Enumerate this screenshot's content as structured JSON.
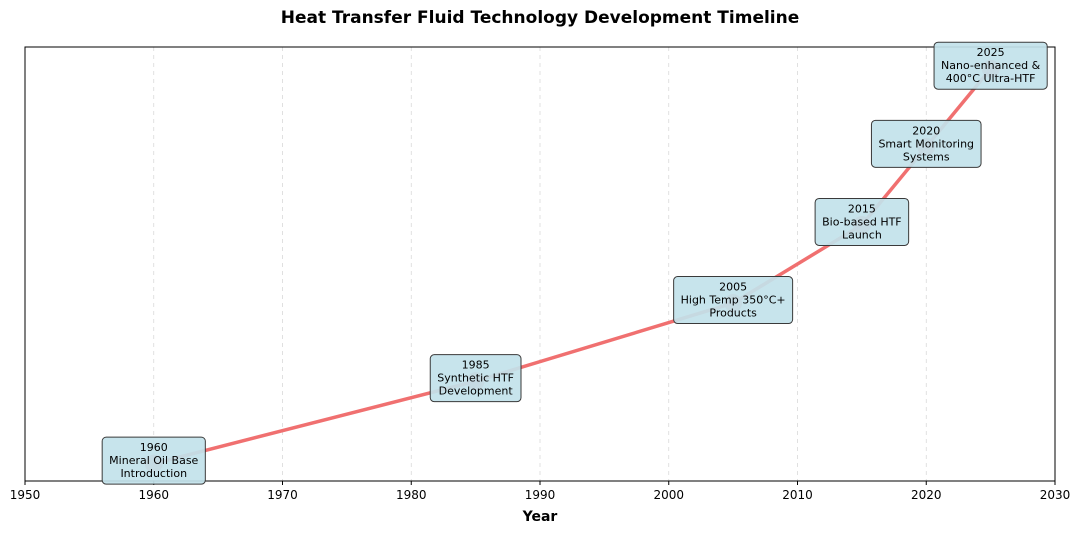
{
  "chart_data": {
    "type": "line",
    "title": "Heat Transfer Fluid Technology Development Timeline",
    "xlabel": "Year",
    "ylabel": "",
    "xlim": [
      1950,
      2030
    ],
    "ylim": [
      0,
      1
    ],
    "xticks": [
      1950,
      1960,
      1970,
      1980,
      1990,
      2000,
      2010,
      2020,
      2030
    ],
    "grid": "vertical dashed",
    "line_color": "#f07070",
    "marker_color": "#e8747c",
    "box_fill": "#c2e2ea",
    "box_stroke": "#3a3a3a",
    "points": [
      {
        "x": 1960,
        "y": 0.04,
        "label": [
          "1960",
          "Mineral Oil Base",
          "Introduction"
        ]
      },
      {
        "x": 1985,
        "y": 0.23,
        "label": [
          "1985",
          "Synthetic HTF",
          "Development"
        ]
      },
      {
        "x": 2005,
        "y": 0.41,
        "label": [
          "2005",
          "High Temp 350°C+",
          "Products"
        ]
      },
      {
        "x": 2015,
        "y": 0.59,
        "label": [
          "2015",
          "Bio-based HTF",
          "Launch"
        ]
      },
      {
        "x": 2020,
        "y": 0.77,
        "label": [
          "2020",
          "Smart Monitoring",
          "Systems"
        ]
      },
      {
        "x": 2025,
        "y": 0.95,
        "label": [
          "2025",
          "Nano-enhanced &",
          "400°C Ultra-HTF"
        ]
      }
    ]
  }
}
